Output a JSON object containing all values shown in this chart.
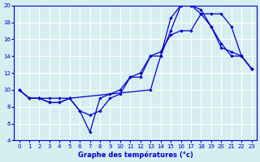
{
  "title": "Graphe des températures (°c)",
  "bg_color": "#d6eef0",
  "line_color": "#0000cc",
  "grid_color": "#ffffff",
  "xlim": [
    -0.5,
    23.5
  ],
  "ylim": [
    4,
    20
  ],
  "xticks": [
    0,
    1,
    2,
    3,
    4,
    5,
    6,
    7,
    8,
    9,
    10,
    11,
    12,
    13,
    14,
    15,
    16,
    17,
    18,
    19,
    20,
    21,
    22,
    23
  ],
  "yticks": [
    4,
    6,
    8,
    10,
    12,
    14,
    16,
    18,
    20
  ],
  "line1_x": [
    0,
    1,
    2,
    3,
    4,
    5,
    13,
    14,
    15,
    16,
    17,
    18,
    19,
    20,
    21,
    22,
    23
  ],
  "line1_y": [
    10,
    9,
    9,
    9,
    9,
    9,
    10,
    14,
    17,
    20,
    20,
    19.5,
    17.5,
    15.5,
    14,
    14,
    12.5
  ],
  "line2_x": [
    0,
    1,
    2,
    3,
    4,
    5,
    6,
    7,
    8,
    9,
    10,
    11,
    12,
    13,
    14,
    15,
    16,
    17,
    18,
    19,
    20,
    21,
    22,
    23
  ],
  "line2_y": [
    10,
    9,
    9,
    8.5,
    8.5,
    9,
    7.5,
    7,
    7.5,
    9,
    9.5,
    11.5,
    11.5,
    14,
    14,
    18.5,
    20,
    20,
    19,
    17.5,
    15,
    14.5,
    14,
    12.5
  ],
  "line3_x": [
    0,
    1,
    2,
    3,
    4,
    5,
    6,
    7,
    8,
    9,
    10,
    11,
    12,
    13,
    14,
    15,
    16,
    17,
    18,
    19,
    20,
    21,
    22,
    23
  ],
  "line3_y": [
    10,
    9,
    9,
    8.5,
    8.5,
    9,
    7.5,
    5,
    9,
    9.5,
    10,
    11.5,
    12,
    14,
    14.5,
    16.5,
    17,
    17,
    19,
    19,
    19,
    17.5,
    14,
    12.5
  ]
}
